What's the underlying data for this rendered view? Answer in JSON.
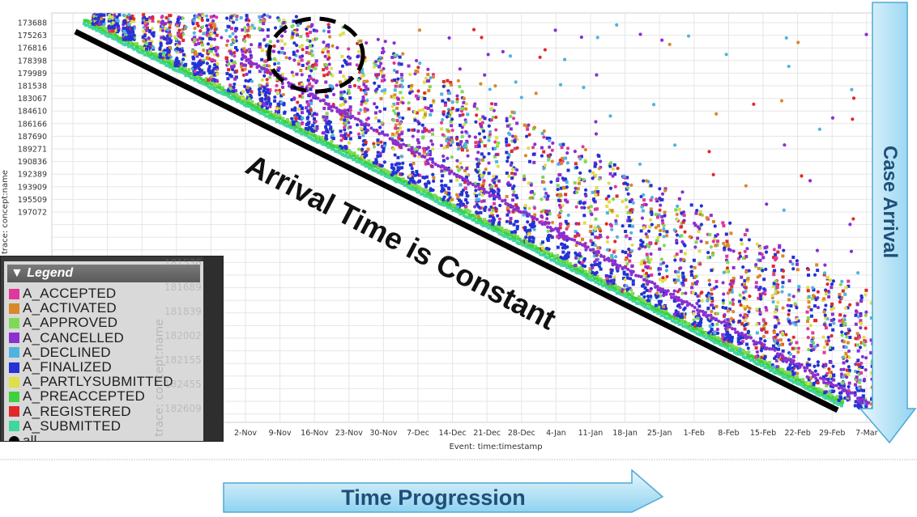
{
  "chart_data": {
    "type": "scatter",
    "title": "",
    "xlabel": "Event: time:timestamp",
    "ylabel": "trace: concept:name",
    "x_ticks": [
      "2-Nov",
      "9-Nov",
      "16-Nov",
      "23-Nov",
      "30-Nov",
      "7-Dec",
      "14-Dec",
      "21-Dec",
      "28-Dec",
      "4-Jan",
      "11-Jan",
      "18-Jan",
      "25-Jan",
      "1-Feb",
      "8-Feb",
      "15-Feb",
      "22-Feb",
      "29-Feb",
      "7-Mar"
    ],
    "y_ticks": [
      "173688",
      "175263",
      "176816",
      "178398",
      "179989",
      "181538",
      "183067",
      "184610",
      "186166",
      "187690",
      "189271",
      "190836",
      "192389",
      "193909",
      "195509",
      "197072"
    ],
    "y_ticks_hidden": [
      "181536",
      "181689",
      "181839",
      "182002",
      "182155",
      "182455",
      "182609"
    ],
    "hidden_axis_label": "trace: concept:name",
    "grid": true,
    "legend_position": "bottom-left",
    "series": [
      {
        "name": "A_ACCEPTED",
        "color": "#e0379a"
      },
      {
        "name": "A_ACTIVATED",
        "color": "#d9892a"
      },
      {
        "name": "A_APPROVED",
        "color": "#7fd957"
      },
      {
        "name": "A_CANCELLED",
        "color": "#8b2fd1"
      },
      {
        "name": "A_DECLINED",
        "color": "#4fb3e0"
      },
      {
        "name": "A_FINALIZED",
        "color": "#2432d6"
      },
      {
        "name": "A_PARTLYSUBMITTED",
        "color": "#dede46"
      },
      {
        "name": "A_PREACCEPTED",
        "color": "#3dd13d"
      },
      {
        "name": "A_REGISTERED",
        "color": "#e02a2a"
      },
      {
        "name": "A_SUBMITTED",
        "color": "#3fd6a0"
      }
    ]
  },
  "legend": {
    "title": "▼ Legend",
    "items": [
      {
        "label": "A_ACCEPTED",
        "color": "#e0379a"
      },
      {
        "label": "A_ACTIVATED",
        "color": "#d9892a"
      },
      {
        "label": "A_APPROVED",
        "color": "#7fd957"
      },
      {
        "label": "A_CANCELLED",
        "color": "#8b2fd1"
      },
      {
        "label": "A_DECLINED",
        "color": "#4fb3e0"
      },
      {
        "label": "A_FINALIZED",
        "color": "#2432d6"
      },
      {
        "label": "A_PARTLYSUBMITTED",
        "color": "#dede46"
      },
      {
        "label": "A_PREACCEPTED",
        "color": "#3dd13d"
      },
      {
        "label": "A_REGISTERED",
        "color": "#e02a2a"
      },
      {
        "label": "A_SUBMITTED",
        "color": "#3fd6a0"
      },
      {
        "label": "all",
        "color": "#000000"
      }
    ]
  },
  "annotations": {
    "diagonal": "Arrival Time is Constant",
    "time_progression": "Time Progression",
    "case_arrival": "Case Arrival"
  }
}
